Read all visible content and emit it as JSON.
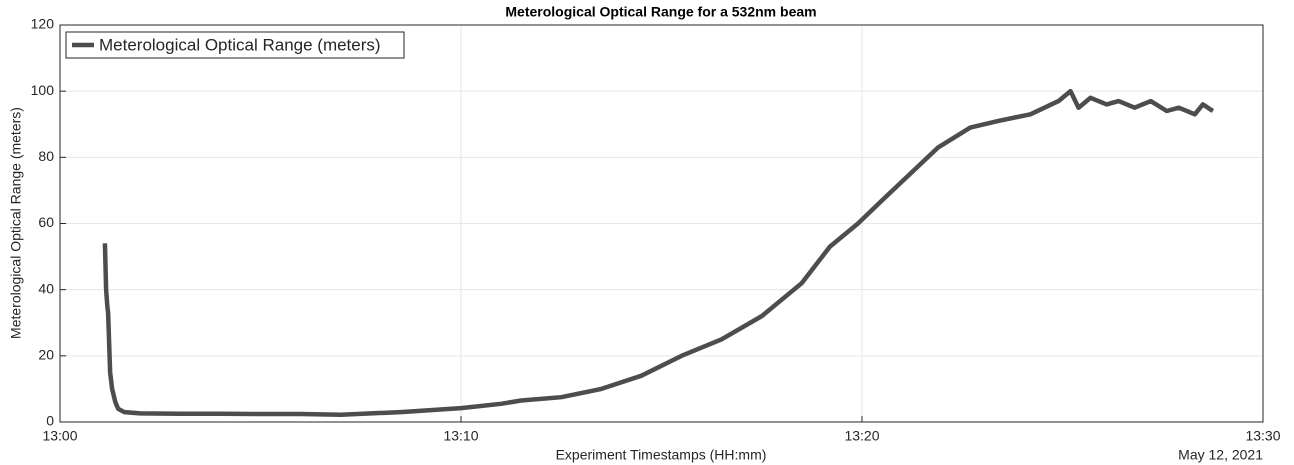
{
  "chart_data": {
    "type": "line",
    "title": "Meterological Optical Range for a 532nm beam",
    "x_label": "Experiment Timestamps (HH:mm)",
    "y_label": "Meterological Optical Range (meters)",
    "x_secondary_label": "May 12, 2021",
    "x": [
      1.12,
      1.15,
      1.18,
      1.2,
      1.25,
      1.3,
      1.38,
      1.45,
      1.6,
      2,
      3,
      4,
      5,
      6,
      7,
      8.5,
      10,
      11,
      11.5,
      12.5,
      13.5,
      14.5,
      15.5,
      16.5,
      17.5,
      18.5,
      19.2,
      19.9,
      20.5,
      21.2,
      21.9,
      22.7,
      23.4,
      24.2,
      24.9,
      25.2,
      25.4,
      25.7,
      26.1,
      26.4,
      26.8,
      27.2,
      27.6,
      27.9,
      28.3,
      28.5,
      28.75
    ],
    "series": [
      {
        "name": "Meterological Optical Range (meters)",
        "color": "#4d4d4d",
        "values": [
          54,
          40,
          35,
          33,
          15,
          10,
          6,
          4,
          3,
          2.6,
          2.5,
          2.5,
          2.4,
          2.4,
          2.2,
          3,
          4.2,
          5.5,
          6.5,
          7.5,
          10,
          14,
          20,
          25,
          32,
          42,
          53,
          60,
          67,
          75,
          83,
          89,
          91,
          93,
          97,
          100,
          95,
          98,
          96,
          97,
          95,
          97,
          94,
          95,
          93,
          96,
          94
        ]
      }
    ],
    "xlim": [
      0,
      30
    ],
    "xticks": [
      {
        "value": 0,
        "label": "13:00"
      },
      {
        "value": 10,
        "label": "13:10"
      },
      {
        "value": 20,
        "label": "13:20"
      },
      {
        "value": 30,
        "label": "13:30"
      }
    ],
    "ylim": [
      0,
      120
    ],
    "yticks": [
      0,
      20,
      40,
      60,
      80,
      100,
      120
    ],
    "grid": true,
    "legend": "upper-left"
  }
}
